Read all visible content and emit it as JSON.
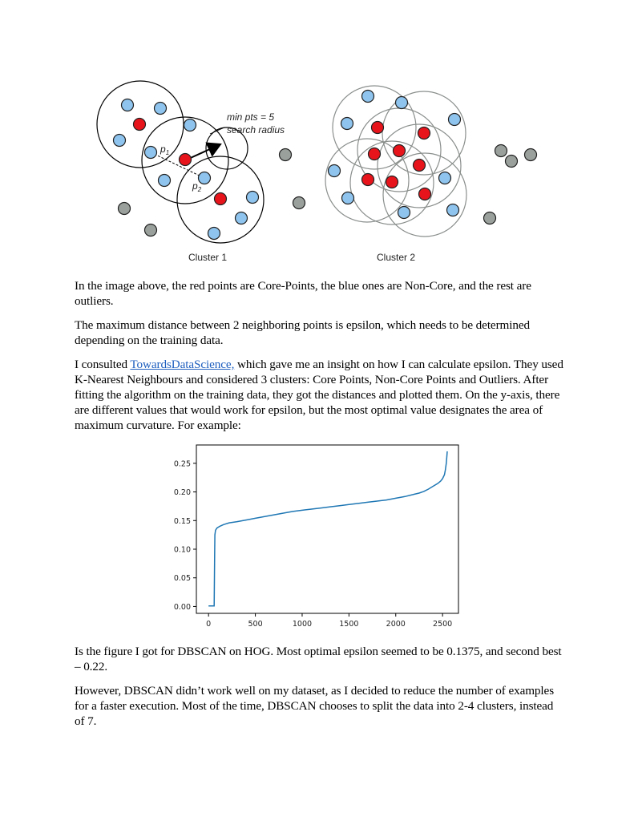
{
  "diagram": {
    "cluster_labels": [
      "Cluster 1",
      "Cluster 2"
    ],
    "annotation_line1": "min pts = 5",
    "annotation_line2": "search radius",
    "point_labels": [
      "p",
      "p"
    ],
    "point_subscripts": [
      "1",
      "2"
    ],
    "colors": {
      "core": "#e8141c",
      "non_core": "#8ec4ee",
      "outlier": "#9aa19c",
      "circle_c2": "#8a8f8c"
    }
  },
  "paragraphs": {
    "p1": "In the image above, the red points are Core-Points, the blue ones are Non-Core, and the rest are outliers.",
    "p2": "The maximum distance between 2 neighboring points is epsilon, which needs to be determined depending on the training data.",
    "p3_before": "I consulted ",
    "p3_link": "TowardsDataScience,",
    "p3_after": " which gave me an insight on how I can calculate epsilon. They used    K-Nearest Neighbours and considered 3 clusters: Core Points, Non-Core Points and Outliers. After fitting the algorithm on the training data, they got the distances and plotted them. On the y-axis, there are different values that would work for epsilon, but the most optimal value designates the area of maximum curvature. For example:",
    "p4": "Is the figure I got for DBSCAN on HOG. Most optimal epsilon seemed to be 0.1375, and second best – 0.22.",
    "p5": "However, DBSCAN didn’t work well on my dataset, as I decided to reduce the number of examples for a faster execution. Most of the time, DBSCAN chooses to split the data into 2-4 clusters, instead of 7."
  },
  "chart_data": {
    "type": "line",
    "title": "",
    "xlabel": "",
    "ylabel": "",
    "xlim": [
      -130,
      2670
    ],
    "ylim": [
      -0.012,
      0.282
    ],
    "xticks": [
      0,
      500,
      1000,
      1500,
      2000,
      2500
    ],
    "xtick_labels": [
      "0",
      "500",
      "1000",
      "1500",
      "2000",
      "2500"
    ],
    "yticks": [
      0.0,
      0.05,
      0.1,
      0.15,
      0.2,
      0.25
    ],
    "ytick_labels": [
      "0.00",
      "0.05",
      "0.10",
      "0.15",
      "0.20",
      "0.25"
    ],
    "grid": false,
    "series": [
      {
        "color": "#1f77b4",
        "x": [
          0,
          60,
          62,
          65,
          68,
          75,
          90,
          120,
          160,
          220,
          300,
          400,
          500,
          600,
          700,
          800,
          900,
          1000,
          1100,
          1200,
          1300,
          1400,
          1500,
          1600,
          1700,
          1800,
          1900,
          2000,
          2100,
          2200,
          2250,
          2300,
          2350,
          2400,
          2450,
          2480,
          2500,
          2520,
          2530,
          2540,
          2545,
          2550
        ],
        "y": [
          0.001,
          0.001,
          0.03,
          0.09,
          0.125,
          0.133,
          0.137,
          0.14,
          0.143,
          0.146,
          0.148,
          0.151,
          0.154,
          0.157,
          0.16,
          0.163,
          0.166,
          0.168,
          0.17,
          0.172,
          0.174,
          0.176,
          0.178,
          0.18,
          0.182,
          0.184,
          0.186,
          0.189,
          0.192,
          0.196,
          0.198,
          0.201,
          0.205,
          0.21,
          0.215,
          0.219,
          0.223,
          0.23,
          0.238,
          0.25,
          0.26,
          0.271
        ]
      }
    ]
  }
}
